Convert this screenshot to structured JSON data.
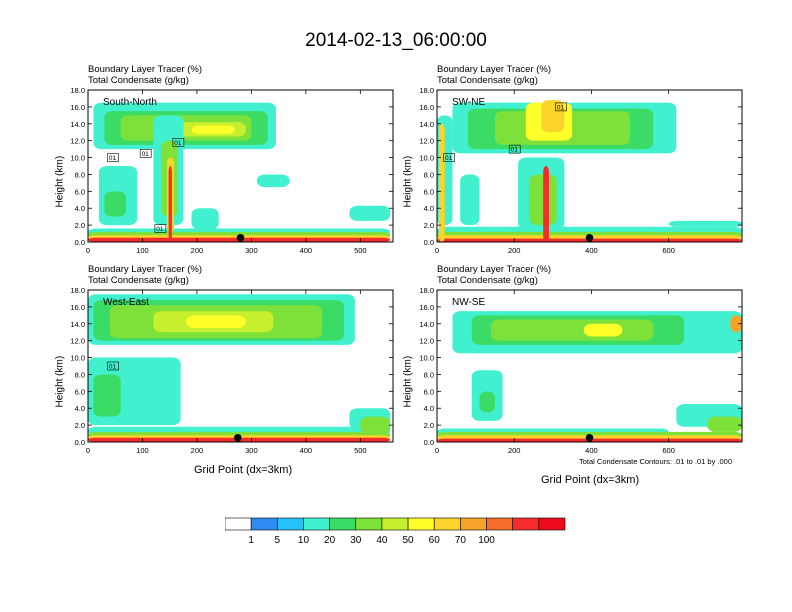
{
  "figure": {
    "title": "2014-02-13_06:00:00",
    "ylabel": "Height (km)",
    "xlabel": "Grid Point (dx=3km)",
    "contour_note": "Total Condensate Contours: .01 to .01 by .000"
  },
  "chart_data": [
    {
      "type": "heatmap",
      "panel": "South-North",
      "header_line1": "Boundary Layer Tracer    (%)",
      "header_line2": "Total Condensate    (g/kg)",
      "ylim": [
        0,
        18
      ],
      "yticks": [
        "0.0",
        "2.0",
        "4.0",
        "6.0",
        "8.0",
        "10.0",
        "12.0",
        "14.0",
        "16.0",
        "18.0"
      ],
      "xlim": [
        0,
        560
      ],
      "xticks": [
        0,
        100,
        200,
        300,
        400,
        500
      ],
      "marker_x": 280,
      "contour_labels": [
        {
          "text": "01",
          "x": 45,
          "y": 10
        },
        {
          "text": "01",
          "x": 105,
          "y": 10.5
        },
        {
          "text": "01",
          "x": 165,
          "y": 11.8
        },
        {
          "text": "01",
          "x": 132,
          "y": 1.6
        }
      ],
      "fields": [
        {
          "level": 10,
          "x0": 0,
          "x1": 555,
          "y0": 0.8,
          "y1": 1.6
        },
        {
          "level": 30,
          "x0": 0,
          "x1": 555,
          "y0": 0.5,
          "y1": 1.2
        },
        {
          "level": 60,
          "x0": 0,
          "x1": 555,
          "y0": 0.2,
          "y1": 0.8
        },
        {
          "level": 90,
          "x0": 0,
          "x1": 555,
          "y0": 0,
          "y1": 0.5
        },
        {
          "level": 10,
          "x0": 10,
          "x1": 345,
          "y0": 11,
          "y1": 16.5
        },
        {
          "level": 20,
          "x0": 30,
          "x1": 330,
          "y0": 11.5,
          "y1": 15.5
        },
        {
          "level": 30,
          "x0": 60,
          "x1": 300,
          "y0": 12,
          "y1": 15
        },
        {
          "level": 40,
          "x0": 160,
          "x1": 290,
          "y0": 12.5,
          "y1": 14.2
        },
        {
          "level": 50,
          "x0": 190,
          "x1": 270,
          "y0": 12.8,
          "y1": 13.8
        },
        {
          "level": 10,
          "x0": 20,
          "x1": 90,
          "y0": 2,
          "y1": 9
        },
        {
          "level": 20,
          "x0": 30,
          "x1": 70,
          "y0": 3,
          "y1": 6
        },
        {
          "level": 10,
          "x0": 120,
          "x1": 175,
          "y0": 2,
          "y1": 15
        },
        {
          "level": 30,
          "x0": 135,
          "x1": 165,
          "y0": 3,
          "y1": 12
        },
        {
          "level": 60,
          "x0": 145,
          "x1": 158,
          "y0": 1,
          "y1": 10
        },
        {
          "level": 90,
          "x0": 148,
          "x1": 154,
          "y0": 0,
          "y1": 9
        },
        {
          "level": 10,
          "x0": 310,
          "x1": 370,
          "y0": 6.5,
          "y1": 8
        },
        {
          "level": 10,
          "x0": 480,
          "x1": 555,
          "y0": 2.5,
          "y1": 4.3
        },
        {
          "level": 10,
          "x0": 190,
          "x1": 240,
          "y0": 1.5,
          "y1": 4
        }
      ]
    },
    {
      "type": "heatmap",
      "panel": "SW-NE",
      "header_line1": "Boundary Layer Tracer    (%)",
      "header_line2": "Total Condensate    (g/kg)",
      "ylim": [
        0,
        18
      ],
      "yticks": [
        "0.0",
        "2.0",
        "4.0",
        "6.0",
        "8.0",
        "10.0",
        "12.0",
        "14.0",
        "16.0",
        "18.0"
      ],
      "xlim": [
        0,
        790
      ],
      "xticks": [
        0,
        200,
        400,
        600
      ],
      "marker_x": 395,
      "contour_labels": [
        {
          "text": "01",
          "x": 30,
          "y": 10
        },
        {
          "text": "01",
          "x": 200,
          "y": 11
        },
        {
          "text": "01",
          "x": 320,
          "y": 16
        }
      ],
      "fields": [
        {
          "level": 10,
          "x0": 0,
          "x1": 790,
          "y0": 0.8,
          "y1": 1.8
        },
        {
          "level": 30,
          "x0": 0,
          "x1": 790,
          "y0": 0.5,
          "y1": 1.2
        },
        {
          "level": 60,
          "x0": 0,
          "x1": 790,
          "y0": 0.2,
          "y1": 0.8
        },
        {
          "level": 90,
          "x0": 0,
          "x1": 790,
          "y0": 0,
          "y1": 0.4
        },
        {
          "level": 10,
          "x0": 40,
          "x1": 620,
          "y0": 10.5,
          "y1": 16.5
        },
        {
          "level": 20,
          "x0": 80,
          "x1": 560,
          "y0": 11,
          "y1": 15.8
        },
        {
          "level": 30,
          "x0": 150,
          "x1": 500,
          "y0": 11.5,
          "y1": 15.5
        },
        {
          "level": 50,
          "x0": 230,
          "x1": 350,
          "y0": 12,
          "y1": 16.5
        },
        {
          "level": 60,
          "x0": 270,
          "x1": 330,
          "y0": 13,
          "y1": 16.8
        },
        {
          "level": 10,
          "x0": 0,
          "x1": 40,
          "y0": 2,
          "y1": 15
        },
        {
          "level": 60,
          "x0": 5,
          "x1": 20,
          "y0": 0,
          "y1": 14
        },
        {
          "level": 10,
          "x0": 60,
          "x1": 110,
          "y0": 2,
          "y1": 8
        },
        {
          "level": 10,
          "x0": 210,
          "x1": 330,
          "y0": 1.5,
          "y1": 10
        },
        {
          "level": 30,
          "x0": 240,
          "x1": 310,
          "y0": 2,
          "y1": 8
        },
        {
          "level": 90,
          "x0": 275,
          "x1": 290,
          "y0": 0,
          "y1": 9
        },
        {
          "level": 10,
          "x0": 600,
          "x1": 790,
          "y0": 1.8,
          "y1": 2.5
        }
      ]
    },
    {
      "type": "heatmap",
      "panel": "West-East",
      "header_line1": "Boundary Layer Tracer    (%)",
      "header_line2": "Total Condensate    (g/kg)",
      "ylim": [
        0,
        18
      ],
      "yticks": [
        "0.0",
        "2.0",
        "4.0",
        "6.0",
        "8.0",
        "10.0",
        "12.0",
        "14.0",
        "16.0",
        "18.0"
      ],
      "xlim": [
        0,
        560
      ],
      "xticks": [
        0,
        100,
        200,
        300,
        400,
        500
      ],
      "marker_x": 275,
      "contour_labels": [
        {
          "text": "01",
          "x": 45,
          "y": 9
        }
      ],
      "fields": [
        {
          "level": 10,
          "x0": 0,
          "x1": 555,
          "y0": 0.8,
          "y1": 1.8
        },
        {
          "level": 30,
          "x0": 0,
          "x1": 555,
          "y0": 0.5,
          "y1": 1.2
        },
        {
          "level": 60,
          "x0": 0,
          "x1": 555,
          "y0": 0.2,
          "y1": 0.8
        },
        {
          "level": 90,
          "x0": 0,
          "x1": 555,
          "y0": 0,
          "y1": 0.5
        },
        {
          "level": 10,
          "x0": 0,
          "x1": 490,
          "y0": 11.5,
          "y1": 17.5
        },
        {
          "level": 20,
          "x0": 10,
          "x1": 470,
          "y0": 12,
          "y1": 16.8
        },
        {
          "level": 30,
          "x0": 40,
          "x1": 430,
          "y0": 12.3,
          "y1": 16.2
        },
        {
          "level": 40,
          "x0": 120,
          "x1": 340,
          "y0": 13,
          "y1": 15.5
        },
        {
          "level": 50,
          "x0": 180,
          "x1": 290,
          "y0": 13.5,
          "y1": 15
        },
        {
          "level": 10,
          "x0": 0,
          "x1": 170,
          "y0": 2,
          "y1": 10
        },
        {
          "level": 20,
          "x0": 10,
          "x1": 60,
          "y0": 3,
          "y1": 8
        },
        {
          "level": 10,
          "x0": 480,
          "x1": 555,
          "y0": 1.5,
          "y1": 4
        },
        {
          "level": 30,
          "x0": 500,
          "x1": 555,
          "y0": 1,
          "y1": 3
        }
      ]
    },
    {
      "type": "heatmap",
      "panel": "NW-SE",
      "header_line1": "Boundary Layer Tracer    (%)",
      "header_line2": "Total Condensate    (g/kg)",
      "ylim": [
        0,
        18
      ],
      "yticks": [
        "0.0",
        "2.0",
        "4.0",
        "6.0",
        "8.0",
        "10.0",
        "12.0",
        "14.0",
        "16.0",
        "18.0"
      ],
      "xlim": [
        0,
        790
      ],
      "xticks": [
        0,
        200,
        400,
        600
      ],
      "marker_x": 395,
      "contour_labels": [],
      "fields": [
        {
          "level": 10,
          "x0": 0,
          "x1": 600,
          "y0": 0.8,
          "y1": 1.6
        },
        {
          "level": 30,
          "x0": 0,
          "x1": 790,
          "y0": 0.5,
          "y1": 1.2
        },
        {
          "level": 60,
          "x0": 0,
          "x1": 790,
          "y0": 0.2,
          "y1": 0.8
        },
        {
          "level": 90,
          "x0": 0,
          "x1": 790,
          "y0": 0,
          "y1": 0.4
        },
        {
          "level": 10,
          "x0": 40,
          "x1": 790,
          "y0": 10.5,
          "y1": 15.5
        },
        {
          "level": 20,
          "x0": 90,
          "x1": 640,
          "y0": 11.5,
          "y1": 15
        },
        {
          "level": 30,
          "x0": 140,
          "x1": 560,
          "y0": 12,
          "y1": 14.5
        },
        {
          "level": 50,
          "x0": 380,
          "x1": 480,
          "y0": 12.5,
          "y1": 14
        },
        {
          "level": 70,
          "x0": 760,
          "x1": 790,
          "y0": 13,
          "y1": 15
        },
        {
          "level": 10,
          "x0": 90,
          "x1": 170,
          "y0": 2.5,
          "y1": 8.5
        },
        {
          "level": 20,
          "x0": 110,
          "x1": 150,
          "y0": 3.5,
          "y1": 6
        },
        {
          "level": 10,
          "x0": 620,
          "x1": 790,
          "y0": 1.8,
          "y1": 4.5
        },
        {
          "level": 30,
          "x0": 700,
          "x1": 790,
          "y0": 1.2,
          "y1": 3
        }
      ]
    }
  ],
  "colorbar": {
    "labels": [
      "1",
      "5",
      "10",
      "20",
      "30",
      "40",
      "50",
      "60",
      "70",
      "100"
    ],
    "colors": [
      "#ffffff",
      "#2f8cf3",
      "#26c2f7",
      "#41f0cf",
      "#3bdc66",
      "#7de13a",
      "#c6ef2d",
      "#ffff2a",
      "#fbd32a",
      "#f7a329",
      "#f66d2c",
      "#f72b2b",
      "#ee0c1c"
    ]
  }
}
